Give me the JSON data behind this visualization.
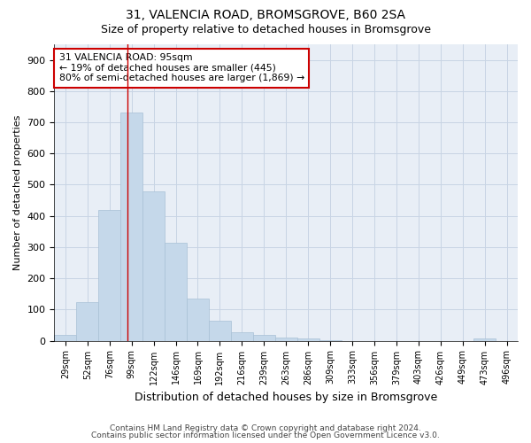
{
  "title1": "31, VALENCIA ROAD, BROMSGROVE, B60 2SA",
  "title2": "Size of property relative to detached houses in Bromsgrove",
  "xlabel": "Distribution of detached houses by size in Bromsgrove",
  "ylabel": "Number of detached properties",
  "bar_labels": [
    "29sqm",
    "52sqm",
    "76sqm",
    "99sqm",
    "122sqm",
    "146sqm",
    "169sqm",
    "192sqm",
    "216sqm",
    "239sqm",
    "263sqm",
    "286sqm",
    "309sqm",
    "333sqm",
    "356sqm",
    "379sqm",
    "403sqm",
    "426sqm",
    "449sqm",
    "473sqm",
    "496sqm"
  ],
  "bar_values": [
    20,
    125,
    420,
    730,
    480,
    315,
    135,
    63,
    27,
    20,
    10,
    8,
    2,
    0,
    0,
    0,
    0,
    0,
    0,
    8,
    0
  ],
  "bar_color": "#c5d8ea",
  "bar_edge_color": "#a8c0d6",
  "annotation_text": "31 VALENCIA ROAD: 95sqm\n← 19% of detached houses are smaller (445)\n80% of semi-detached houses are larger (1,869) →",
  "annotation_box_color": "white",
  "annotation_box_edge_color": "#cc0000",
  "vline_color": "#cc0000",
  "ylim": [
    0,
    950
  ],
  "yticks": [
    0,
    100,
    200,
    300,
    400,
    500,
    600,
    700,
    800,
    900
  ],
  "grid_color": "#c8d4e4",
  "background_color": "#e8eef6",
  "footer1": "Contains HM Land Registry data © Crown copyright and database right 2024.",
  "footer2": "Contains public sector information licensed under the Open Government Licence v3.0.",
  "title1_fontsize": 10,
  "title2_fontsize": 9,
  "ylabel_fontsize": 8,
  "xlabel_fontsize": 9,
  "tick_fontsize": 7,
  "footer_fontsize": 6.5
}
